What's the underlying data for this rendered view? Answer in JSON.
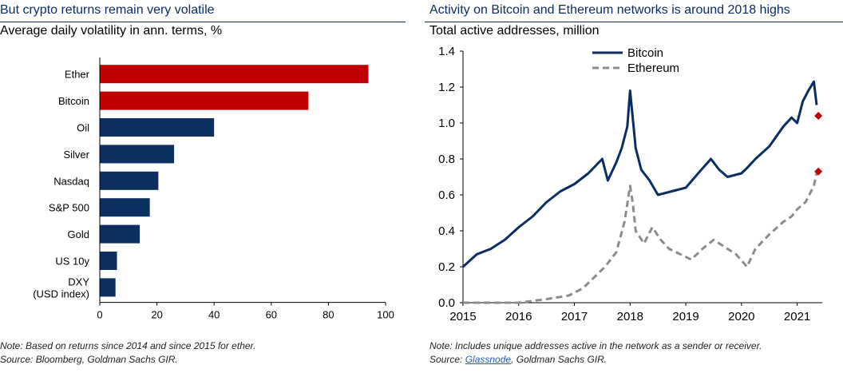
{
  "left": {
    "title": "But crypto returns remain very volatile",
    "subtitle": "Average daily volatility in ann. terms, %",
    "note": "Note: Based on returns since 2014 and since 2015 for ether.",
    "source": "Source: Bloomberg, Goldman Sachs GIR."
  },
  "right": {
    "title": "Activity on Bitcoin and Ethereum networks is around 2018 highs",
    "subtitle": "Total active addresses, million",
    "note": "Note: Includes unique addresses active in the network as a sender or receiver.",
    "source_prefix": "Source: ",
    "source_link": "Glassnode",
    "source_suffix": ", Goldman Sachs GIR."
  },
  "colors": {
    "title": "#0b2d62",
    "crypto_bar": "#c00000",
    "other_bar": "#0b3060",
    "bitcoin_line": "#0b2d62",
    "ethereum_line": "#8c8c8c",
    "marker": "#c00000"
  },
  "chart_data": [
    {
      "type": "bar",
      "orientation": "horizontal",
      "categories": [
        "Ether",
        "Bitcoin",
        "Oil",
        "Silver",
        "Nasdaq",
        "S&P 500",
        "Gold",
        "US 10y",
        "DXY\n(USD index)"
      ],
      "values": [
        94,
        73,
        40,
        26,
        20.5,
        17.5,
        14,
        6,
        5.5
      ],
      "highlight": [
        true,
        true,
        false,
        false,
        false,
        false,
        false,
        false,
        false
      ],
      "xlim": [
        0,
        100
      ],
      "xticks": [
        0,
        20,
        40,
        60,
        80,
        100
      ],
      "grid": false
    },
    {
      "type": "line",
      "ylim": [
        0,
        1.4
      ],
      "yticks": [
        "0.0",
        "0.2",
        "0.4",
        "0.6",
        "0.8",
        "1.0",
        "1.2",
        "1.4"
      ],
      "xlim": [
        2015,
        2021.45
      ],
      "xticks": [
        "2015",
        "2016",
        "2017",
        "2018",
        "2019",
        "2020",
        "2021"
      ],
      "legend_position": "top-center",
      "grid": false,
      "series": [
        {
          "name": "Bitcoin",
          "style": "dash-dot",
          "x": [
            2015.0,
            2015.25,
            2015.5,
            2015.75,
            2016.0,
            2016.25,
            2016.5,
            2016.75,
            2017.0,
            2017.25,
            2017.5,
            2017.6,
            2017.75,
            2017.85,
            2017.95,
            2018.0,
            2018.05,
            2018.1,
            2018.2,
            2018.35,
            2018.5,
            2018.75,
            2019.0,
            2019.25,
            2019.45,
            2019.6,
            2019.75,
            2020.0,
            2020.1,
            2020.25,
            2020.5,
            2020.75,
            2020.9,
            2021.0,
            2021.1,
            2021.2,
            2021.3,
            2021.35
          ],
          "values": [
            0.2,
            0.27,
            0.3,
            0.35,
            0.42,
            0.48,
            0.56,
            0.62,
            0.66,
            0.72,
            0.8,
            0.68,
            0.78,
            0.86,
            0.98,
            1.18,
            1.02,
            0.86,
            0.74,
            0.68,
            0.6,
            0.62,
            0.64,
            0.73,
            0.8,
            0.74,
            0.7,
            0.72,
            0.75,
            0.8,
            0.87,
            0.98,
            1.03,
            1.0,
            1.12,
            1.18,
            1.23,
            1.1
          ]
        },
        {
          "name": "Ethereum",
          "style": "dashed",
          "x": [
            2015.0,
            2015.5,
            2016.0,
            2016.5,
            2016.9,
            2017.15,
            2017.35,
            2017.55,
            2017.75,
            2017.9,
            2018.0,
            2018.05,
            2018.1,
            2018.25,
            2018.4,
            2018.55,
            2018.7,
            2018.9,
            2019.1,
            2019.3,
            2019.5,
            2019.65,
            2019.9,
            2020.1,
            2020.25,
            2020.5,
            2020.75,
            2020.9,
            2021.0,
            2021.15,
            2021.3,
            2021.35
          ],
          "values": [
            0.0,
            0.0,
            0.0,
            0.02,
            0.04,
            0.08,
            0.14,
            0.2,
            0.28,
            0.45,
            0.65,
            0.55,
            0.4,
            0.33,
            0.42,
            0.35,
            0.3,
            0.27,
            0.24,
            0.3,
            0.35,
            0.32,
            0.27,
            0.2,
            0.3,
            0.38,
            0.45,
            0.48,
            0.52,
            0.56,
            0.65,
            0.72
          ]
        }
      ],
      "markers": [
        {
          "series": "Bitcoin",
          "x": 2021.38,
          "value": 1.04
        },
        {
          "series": "Ethereum",
          "x": 2021.38,
          "value": 0.73
        }
      ]
    }
  ]
}
